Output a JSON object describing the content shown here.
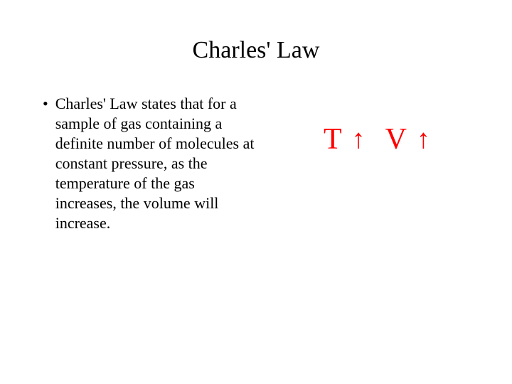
{
  "title": "Charles' Law",
  "bullet": {
    "marker": "•",
    "text": "Charles' Law states that for a sample of gas containing a definite number of molecules at constant pressure, as the temperature of the gas increases, the volume will increase."
  },
  "formula": {
    "part1_letter": "T",
    "part1_arrow": "↑",
    "part2_letter": "V",
    "part2_arrow": "↑",
    "color": "#ff0000"
  },
  "styling": {
    "title_fontsize": 34,
    "body_fontsize": 22,
    "formula_fontsize": 42,
    "background_color": "#ffffff",
    "text_color": "#000000"
  }
}
